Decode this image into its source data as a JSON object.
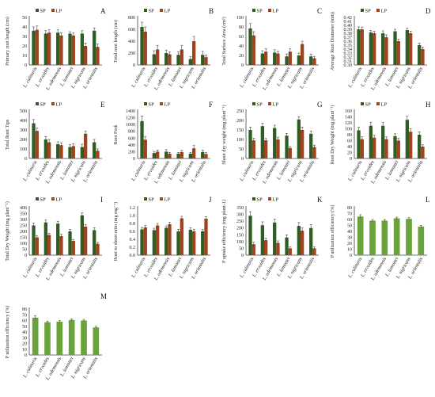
{
  "colors": {
    "SP": "#2f5d23",
    "LP": "#a3431d",
    "single": "#6aa33a",
    "axis": "#444444",
    "error": "#444444"
  },
  "chart_data": [
    {
      "panel_letter": "A",
      "type": "bar",
      "ylabel": "Primary root length (cm)",
      "legend": [
        "SP",
        "LP"
      ],
      "ylim": [
        0,
        50
      ],
      "yticks": [
        0,
        10,
        20,
        30,
        40,
        50
      ],
      "categories": [
        "L. culinaris",
        "L. ervoides",
        "L. odemensis",
        "L. lamottei",
        "L. nigricans",
        "L. orientalis"
      ],
      "series": [
        {
          "name": "SP",
          "values": [
            36,
            33,
            34,
            33,
            33,
            36
          ],
          "errors": [
            4,
            3,
            3,
            2,
            3,
            3
          ]
        },
        {
          "name": "LP",
          "values": [
            37,
            34,
            31,
            31,
            20,
            19
          ],
          "errors": [
            4,
            3,
            3,
            3,
            3,
            3
          ]
        }
      ]
    },
    {
      "panel_letter": "B",
      "type": "bar",
      "ylabel": "Total root length (cm)",
      "legend": [
        "SP",
        "LP"
      ],
      "ylim": [
        0,
        800
      ],
      "yticks": [
        0,
        200,
        400,
        600,
        800
      ],
      "categories": [
        "L. culinaris",
        "L. ervoides",
        "L. odemensis",
        "L. lamottei",
        "L. nigricans",
        "L. orientalis"
      ],
      "series": [
        {
          "name": "SP",
          "values": [
            640,
            180,
            200,
            170,
            100,
            170
          ],
          "errors": [
            80,
            60,
            50,
            50,
            40,
            60
          ]
        },
        {
          "name": "LP",
          "values": [
            560,
            260,
            180,
            260,
            400,
            130
          ],
          "errors": [
            80,
            70,
            40,
            70,
            80,
            40
          ]
        }
      ]
    },
    {
      "panel_letter": "C",
      "type": "bar",
      "ylabel": "Total Surface Area (cm²)",
      "legend": [
        "SP",
        "LP"
      ],
      "ylim": [
        0,
        100
      ],
      "yticks": [
        0,
        20,
        40,
        60,
        80,
        100
      ],
      "categories": [
        "L. culinaris",
        "L. ervoides",
        "L. odemensis",
        "L. lamottei",
        "L. nigricans",
        "L. orientalis"
      ],
      "series": [
        {
          "name": "SP",
          "values": [
            77,
            24,
            26,
            18,
            20,
            18
          ],
          "errors": [
            10,
            6,
            6,
            5,
            5,
            5
          ]
        },
        {
          "name": "LP",
          "values": [
            62,
            28,
            24,
            28,
            44,
            14
          ],
          "errors": [
            8,
            6,
            5,
            6,
            6,
            4
          ]
        }
      ]
    },
    {
      "panel_letter": "D",
      "type": "bar",
      "ylabel": "Average Root Diameter (mm)",
      "legend": [
        "SP",
        "LP"
      ],
      "ylim": [
        0.3,
        0.42
      ],
      "yticks": [
        0.3,
        0.31,
        0.32,
        0.33,
        0.34,
        0.35,
        0.36,
        0.37,
        0.38,
        0.39,
        0.4,
        0.41,
        0.42
      ],
      "categories": [
        "L. culinaris",
        "L. ervoides",
        "L. odemensis",
        "L. lamottei",
        "L. nigricans",
        "L. orientalis"
      ],
      "series": [
        {
          "name": "SP",
          "values": [
            0.39,
            0.382,
            0.38,
            0.385,
            0.388,
            0.35
          ],
          "errors": [
            0.006,
            0.005,
            0.006,
            0.005,
            0.005,
            0.005
          ]
        },
        {
          "name": "LP",
          "values": [
            0.39,
            0.38,
            0.37,
            0.36,
            0.38,
            0.34
          ],
          "errors": [
            0.006,
            0.005,
            0.006,
            0.005,
            0.005,
            0.005
          ]
        }
      ]
    },
    {
      "panel_letter": "E",
      "type": "bar",
      "ylabel": "Total Root Tips",
      "legend": [
        "SP",
        "LP"
      ],
      "ylim": [
        0,
        500
      ],
      "yticks": [
        0,
        100,
        200,
        300,
        400,
        500
      ],
      "categories": [
        "L. culinaris",
        "L. ervoides",
        "L. odemensis",
        "L. lamottei",
        "L. nigricans",
        "L. orientalis"
      ],
      "series": [
        {
          "name": "SP",
          "values": [
            370,
            200,
            150,
            120,
            120,
            170
          ],
          "errors": [
            40,
            30,
            25,
            25,
            30,
            30
          ]
        },
        {
          "name": "LP",
          "values": [
            290,
            170,
            140,
            130,
            260,
            80
          ],
          "errors": [
            30,
            30,
            25,
            25,
            30,
            20
          ]
        }
      ]
    },
    {
      "panel_letter": "F",
      "type": "bar",
      "ylabel": "Root Fork",
      "legend": [
        "SP",
        "LP"
      ],
      "ylim": [
        0,
        1400
      ],
      "yticks": [
        0,
        200,
        400,
        600,
        800,
        1000,
        1200,
        1400
      ],
      "categories": [
        "L. culinaris",
        "L. ervoides",
        "L. odemensis",
        "L. lamottei",
        "L. nigricans",
        "L. orientalis"
      ],
      "series": [
        {
          "name": "SP",
          "values": [
            1100,
            160,
            200,
            140,
            140,
            190
          ],
          "errors": [
            150,
            50,
            60,
            40,
            40,
            60
          ]
        },
        {
          "name": "LP",
          "values": [
            550,
            200,
            140,
            190,
            300,
            130
          ],
          "errors": [
            100,
            50,
            40,
            50,
            80,
            40
          ]
        }
      ]
    },
    {
      "panel_letter": "G",
      "type": "bar",
      "ylabel": "Shoot dry weight (mg plant⁻¹)",
      "legend": [
        "SP",
        "LP"
      ],
      "ylim": [
        0,
        250
      ],
      "yticks": [
        0,
        50,
        100,
        150,
        200,
        250
      ],
      "categories": [
        "L. culinaris",
        "L. ervoides",
        "L. odemensis",
        "L. lamottei",
        "L. nigricans",
        "L. orientalis"
      ],
      "series": [
        {
          "name": "SP",
          "values": [
            150,
            170,
            160,
            120,
            205,
            130
          ],
          "errors": [
            15,
            15,
            15,
            12,
            15,
            15
          ]
        },
        {
          "name": "LP",
          "values": [
            95,
            95,
            100,
            55,
            150,
            60
          ],
          "errors": [
            12,
            10,
            12,
            8,
            15,
            10
          ]
        }
      ]
    },
    {
      "panel_letter": "H",
      "type": "bar",
      "ylabel": "Root Dry Weight (mg plant⁻¹)",
      "legend": [
        "SP",
        "LP"
      ],
      "ylim": [
        0,
        160
      ],
      "yticks": [
        0,
        20,
        40,
        60,
        80,
        100,
        120,
        140,
        160
      ],
      "categories": [
        "L. culinaris",
        "L. ervoides",
        "L. odemensis",
        "L. lamottei",
        "L. nigricans",
        "L. orientalis"
      ],
      "series": [
        {
          "name": "SP",
          "values": [
            95,
            110,
            110,
            75,
            130,
            80
          ],
          "errors": [
            10,
            12,
            12,
            8,
            12,
            10
          ]
        },
        {
          "name": "LP",
          "values": [
            65,
            70,
            65,
            60,
            90,
            40
          ],
          "errors": [
            8,
            8,
            8,
            8,
            10,
            6
          ]
        }
      ]
    },
    {
      "panel_letter": "I",
      "type": "bar",
      "ylabel": "Total Dry Weight (mg plant⁻¹)",
      "legend": [
        "SP",
        "LP"
      ],
      "ylim": [
        0,
        400
      ],
      "yticks": [
        0,
        50,
        100,
        150,
        200,
        250,
        300,
        350,
        400
      ],
      "categories": [
        "L. culinaris",
        "L. ervoides",
        "L. odemensis",
        "L. lamottei",
        "L. nigricans",
        "L. orientalis"
      ],
      "series": [
        {
          "name": "SP",
          "values": [
            250,
            275,
            265,
            200,
            335,
            210
          ],
          "errors": [
            20,
            20,
            20,
            18,
            22,
            20
          ]
        },
        {
          "name": "LP",
          "values": [
            150,
            170,
            160,
            120,
            240,
            95
          ],
          "errors": [
            15,
            15,
            15,
            12,
            18,
            12
          ]
        }
      ]
    },
    {
      "panel_letter": "J",
      "type": "bar",
      "ylabel": "Root to shoot ratio (mg mg⁻¹)",
      "legend": [
        "SP",
        "LP"
      ],
      "ylim": [
        0,
        1.2
      ],
      "yticks": [
        0,
        0.2,
        0.4,
        0.6,
        0.8,
        1.0,
        1.2
      ],
      "categories": [
        "L. culinaris",
        "L. ervoides",
        "L. odemensis",
        "L. lamottei",
        "L. nigricans",
        "L. orientalis"
      ],
      "series": [
        {
          "name": "SP",
          "values": [
            0.65,
            0.63,
            0.69,
            0.6,
            0.64,
            0.6
          ],
          "errors": [
            0.05,
            0.05,
            0.05,
            0.05,
            0.05,
            0.05
          ]
        },
        {
          "name": "LP",
          "values": [
            0.7,
            0.75,
            0.78,
            0.93,
            0.6,
            0.92
          ],
          "errors": [
            0.05,
            0.05,
            0.05,
            0.05,
            0.05,
            0.05
          ]
        }
      ]
    },
    {
      "panel_letter": "K",
      "type": "bar",
      "ylabel": "P uptake efficiency (mg plant-1)",
      "legend": [
        "SP",
        "LP"
      ],
      "ylim": [
        0,
        350
      ],
      "yticks": [
        0,
        50,
        100,
        150,
        200,
        250,
        300,
        350
      ],
      "categories": [
        "L. culinaris",
        "L. ervoides",
        "L. odemensis",
        "L. lamottei",
        "L. nigricans",
        "L. orientalis"
      ],
      "series": [
        {
          "name": "SP",
          "values": [
            290,
            220,
            240,
            130,
            215,
            200
          ],
          "errors": [
            30,
            25,
            25,
            20,
            25,
            25
          ]
        },
        {
          "name": "LP",
          "values": [
            80,
            110,
            90,
            50,
            180,
            50
          ],
          "errors": [
            15,
            15,
            15,
            10,
            20,
            10
          ]
        }
      ]
    },
    {
      "panel_letter": "L",
      "type": "bar",
      "ylabel": "P utilization efficiency (%)",
      "legend": [],
      "ylim": [
        0,
        80
      ],
      "yticks": [
        0,
        10,
        20,
        30,
        40,
        50,
        60,
        70,
        80
      ],
      "categories": [
        "L. culinaris",
        "L. ervoides",
        "L. odemensis",
        "L. lamottei",
        "L. nigricans",
        "L. orientalis"
      ],
      "series": [
        {
          "values": [
            65,
            58,
            58,
            62,
            61,
            48
          ],
          "errors": [
            3,
            2,
            2,
            2,
            2,
            2
          ]
        }
      ]
    },
    {
      "panel_letter": "M",
      "type": "bar",
      "ylabel": "P utilization efficiency (%)",
      "legend": [],
      "ylim": [
        0,
        80
      ],
      "yticks": [
        0,
        10,
        20,
        30,
        40,
        50,
        60,
        70,
        80
      ],
      "categories": [
        "L. culinaris",
        "L. ervoides",
        "L. odemensis",
        "L. lamottei",
        "L. nigricans",
        "L. orientalis"
      ],
      "series": [
        {
          "values": [
            65,
            57,
            58,
            61,
            60,
            48
          ],
          "errors": [
            3,
            2,
            2,
            2,
            2,
            2
          ]
        }
      ]
    }
  ]
}
